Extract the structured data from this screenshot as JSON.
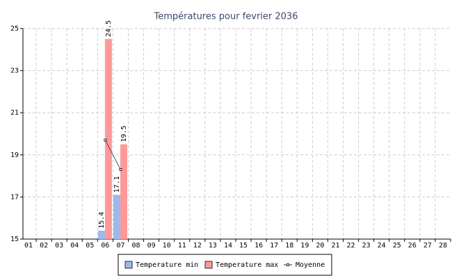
{
  "chart_data": {
    "type": "bar",
    "title": "Températures pour fevrier 2036",
    "categories": [
      "01",
      "02",
      "03",
      "04",
      "05",
      "06",
      "07",
      "08",
      "09",
      "10",
      "11",
      "12",
      "13",
      "14",
      "15",
      "16",
      "17",
      "18",
      "19",
      "20",
      "21",
      "22",
      "23",
      "24",
      "25",
      "26",
      "27",
      "28"
    ],
    "series": [
      {
        "name": "Temperature min",
        "type": "bar",
        "color": "#9cb9ec",
        "values": [
          null,
          null,
          null,
          null,
          null,
          15.4,
          17.1,
          null,
          null,
          null,
          null,
          null,
          null,
          null,
          null,
          null,
          null,
          null,
          null,
          null,
          null,
          null,
          null,
          null,
          null,
          null,
          null,
          null
        ]
      },
      {
        "name": "Temperature max",
        "type": "bar",
        "color": "#ff9999",
        "values": [
          null,
          null,
          null,
          null,
          null,
          24.5,
          19.5,
          null,
          null,
          null,
          null,
          null,
          null,
          null,
          null,
          null,
          null,
          null,
          null,
          null,
          null,
          null,
          null,
          null,
          null,
          null,
          null,
          null
        ]
      },
      {
        "name": "Moyenne",
        "type": "line",
        "color": "#333333",
        "values": [
          null,
          null,
          null,
          null,
          null,
          19.7,
          18.3,
          null,
          null,
          null,
          null,
          null,
          null,
          null,
          null,
          null,
          null,
          null,
          null,
          null,
          null,
          null,
          null,
          null,
          null,
          null,
          null,
          null
        ]
      }
    ],
    "ylim": [
      15,
      25
    ],
    "yticks": [
      15,
      17,
      19,
      21,
      23,
      25
    ],
    "grid": true
  }
}
